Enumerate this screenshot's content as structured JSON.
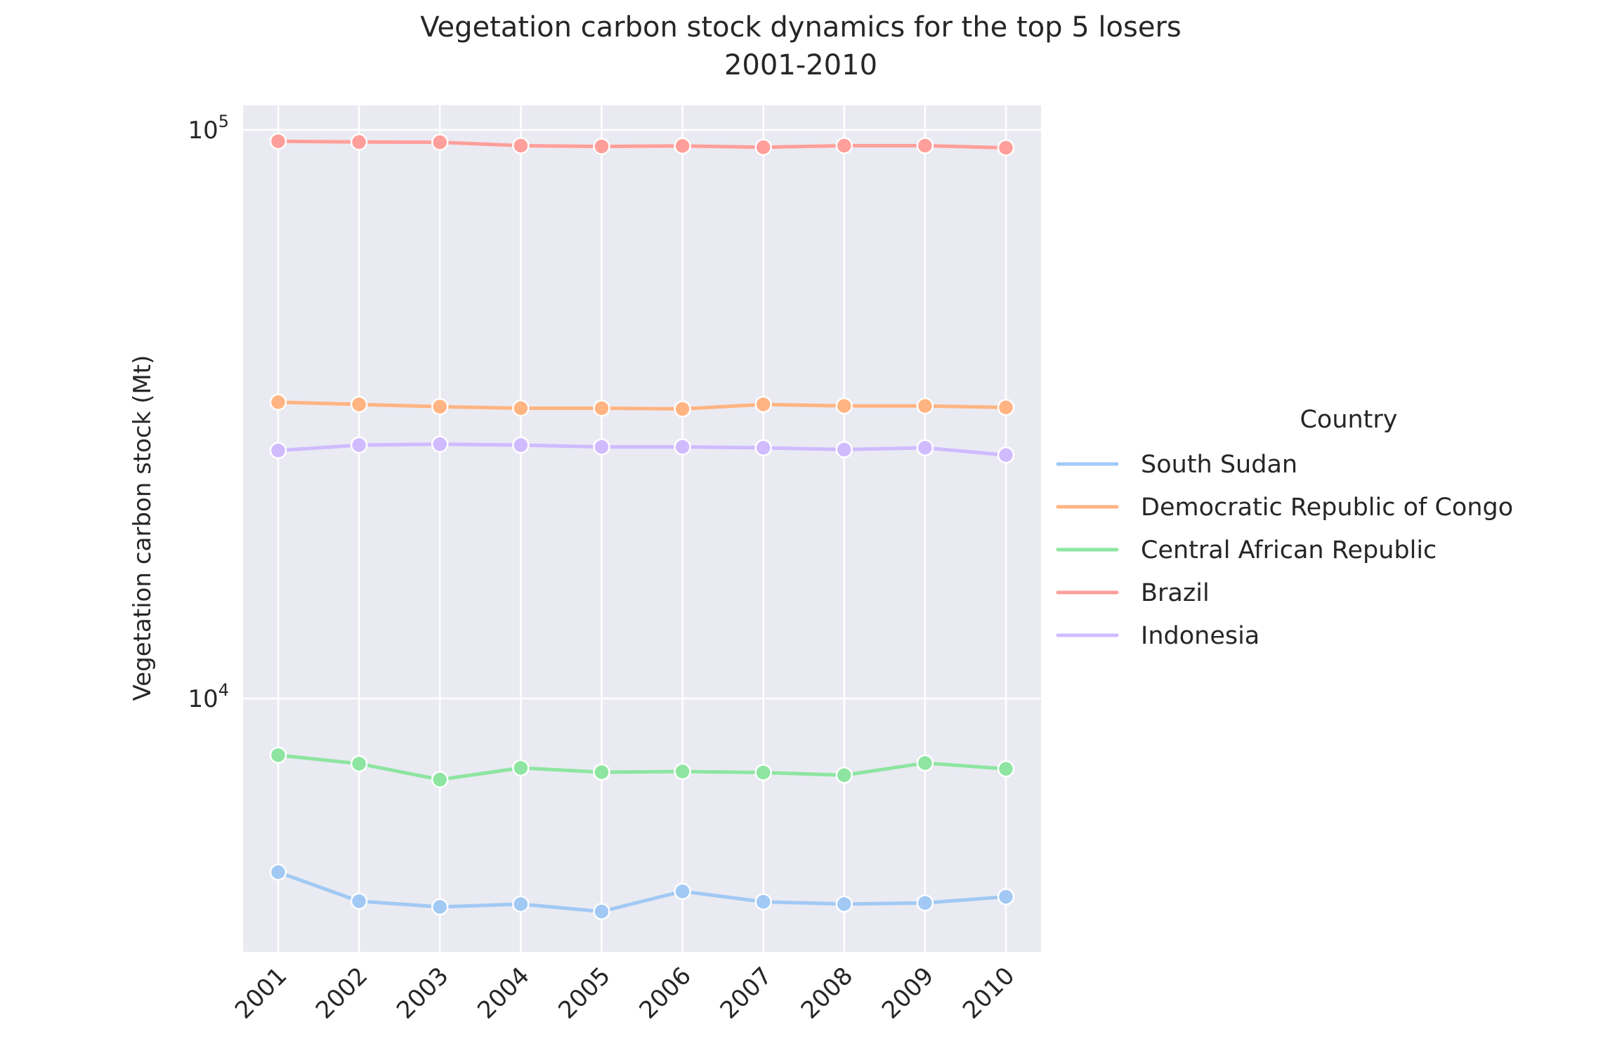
{
  "chart_data": {
    "type": "line",
    "title": "Vegetation carbon stock dynamics for the top 5 losers",
    "subtitle": "2001-2010",
    "xlabel": "",
    "ylabel": "Vegetation carbon stock (Mt)",
    "yscale": "log",
    "ylim": [
      3100,
      112000
    ],
    "y_ticks": [
      {
        "value": 10000,
        "base": "10",
        "exp": "4"
      },
      {
        "value": 100000,
        "base": "10",
        "exp": "5"
      }
    ],
    "x": [
      "2001",
      "2002",
      "2003",
      "2004",
      "2005",
      "2006",
      "2007",
      "2008",
      "2009",
      "2010"
    ],
    "grid": true,
    "legend_placement": "right",
    "legend_title": "Country",
    "background": "#eaeaf2",
    "series": [
      {
        "name": "South Sudan",
        "color": "#a1c9f4",
        "values": [
          4950,
          4400,
          4300,
          4350,
          4220,
          4580,
          4390,
          4350,
          4370,
          4480
        ]
      },
      {
        "name": "Democratic Republic of Congo",
        "color": "#ffb482",
        "values": [
          33200,
          32900,
          32600,
          32400,
          32400,
          32300,
          32900,
          32700,
          32700,
          32500
        ]
      },
      {
        "name": "Central African Republic",
        "color": "#8de5a1",
        "values": [
          7950,
          7680,
          7200,
          7550,
          7420,
          7440,
          7410,
          7330,
          7700,
          7520
        ]
      },
      {
        "name": "Brazil",
        "color": "#ff9f9b",
        "values": [
          95500,
          95200,
          95100,
          93800,
          93500,
          93700,
          93200,
          93800,
          93800,
          93000
        ]
      },
      {
        "name": "Indonesia",
        "color": "#d0bbff",
        "values": [
          27300,
          27900,
          28000,
          27900,
          27700,
          27700,
          27600,
          27400,
          27600,
          26800
        ]
      }
    ]
  }
}
